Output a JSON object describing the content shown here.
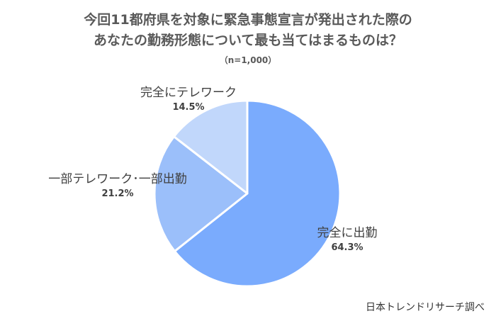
{
  "chart_data": {
    "type": "pie",
    "title_lines": [
      "今回11都府県を対象に緊急事態宣言が発出された際の",
      "あなたの勤務形態について最も当てはまるものは？"
    ],
    "subtitle": "（n=1,000）",
    "slices": [
      {
        "label": "完全に出勤",
        "value": 64.3,
        "value_label": "64.3%",
        "color": "#7aabfd"
      },
      {
        "label": "一部テレワーク･一部出勤",
        "value": 21.2,
        "value_label": "21.2%",
        "color": "#9bbffa"
      },
      {
        "label": "完全にテレワーク",
        "value": 14.5,
        "value_label": "14.5%",
        "color": "#c1d7fb"
      }
    ],
    "start": "12 o'clock",
    "direction": "clockwise"
  },
  "source": "日本トレンドリサーチ調べ"
}
